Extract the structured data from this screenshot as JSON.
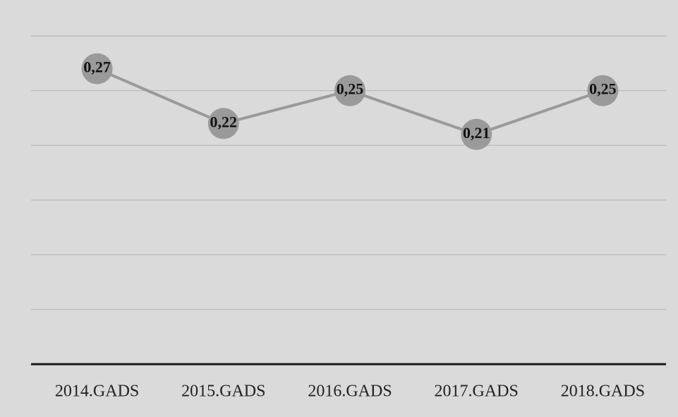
{
  "chart_data": {
    "type": "line",
    "categories": [
      "2014.GADS",
      "2015.GADS",
      "2016.GADS",
      "2017.GADS",
      "2018.GADS"
    ],
    "values": [
      0.27,
      0.22,
      0.25,
      0.21,
      0.25
    ],
    "value_labels": [
      "0,27",
      "0,22",
      "0,25",
      "0,21",
      "0,25"
    ],
    "color": "#9a9a9a",
    "ylim": [
      0,
      0.3
    ],
    "yticks": [
      0,
      0.05,
      0.1,
      0.15,
      0.2,
      0.25,
      0.3
    ],
    "grid": true
  }
}
